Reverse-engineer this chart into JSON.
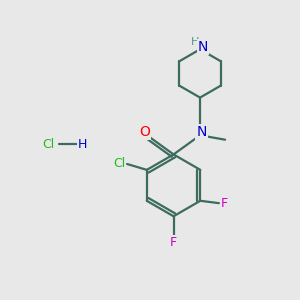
{
  "background_color": "#e8e8e8",
  "bond_color": "#3d6b5e",
  "bond_width": 1.6,
  "atom_colors": {
    "O": "#ff0000",
    "N_amide": "#0000cc",
    "N_pip": "#0000cc",
    "H_pip": "#4a9a8a",
    "Cl_atom": "#22bb22",
    "Cl_hcl": "#22bb22",
    "F": "#cc00cc",
    "H": "#0000cc"
  },
  "figsize": [
    3.0,
    3.0
  ],
  "dpi": 100
}
